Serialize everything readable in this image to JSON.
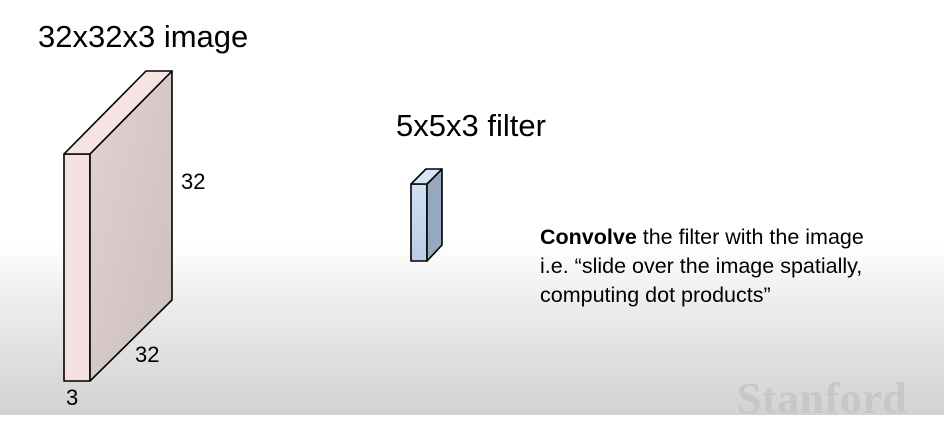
{
  "image_volume": {
    "title": "32x32x3 image",
    "height_label": "32",
    "width_label": "32",
    "depth_label": "3"
  },
  "filter_volume": {
    "title": "5x5x3 filter"
  },
  "description": {
    "emphasis": "Convolve",
    "line1_rest": " the filter with the image",
    "line2": "i.e. “slide over the image spatially,",
    "line3": "computing dot products”"
  },
  "watermark": {
    "text": "Stanford"
  },
  "colors": {
    "image_front": "#f5e1e1",
    "image_side": "#d7cac8",
    "image_top": "#f6e4e3",
    "filter_front": "#c6d8ee",
    "filter_side": "#96a8c0",
    "filter_top": "#d7e5f5",
    "watermark": "#c7c7c7"
  }
}
